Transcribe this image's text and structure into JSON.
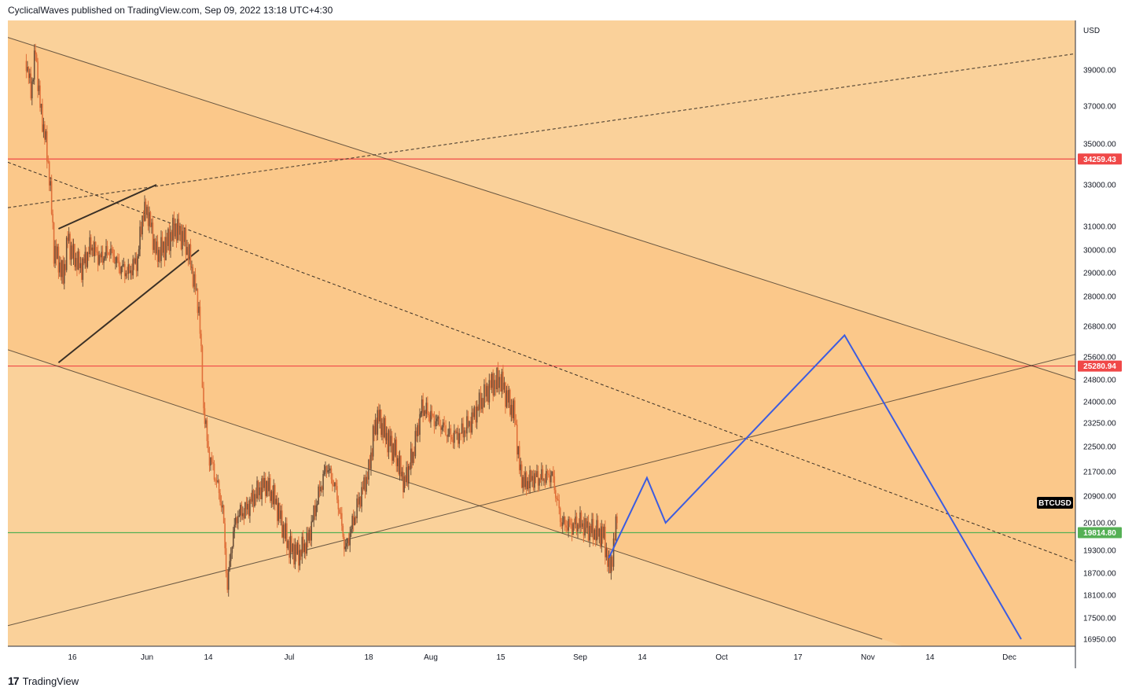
{
  "header": {
    "attribution": "CyclicalWaves published on TradingView.com, Sep 09, 2022 13:18 UTC+4:30"
  },
  "footer": {
    "brand": "TradingView",
    "logo_icon": "tradingview-logo-icon"
  },
  "colors": {
    "chart_bg": "#fad19a",
    "channel_fill": "#fbc88a",
    "candle_up": "#6b4f3a",
    "candle_down": "#e0703a",
    "red_level": "#f04848",
    "green_level": "#55b055",
    "blue_projection": "#3c5ce0",
    "trendline": "#3a3026",
    "label_dark": "#000000"
  },
  "chart_data": {
    "type": "candlestick",
    "symbol_label": "BTCUSD",
    "currency_label": "USD",
    "y_ticks": [
      39000,
      37000,
      35000,
      33000,
      31000,
      30000,
      29000,
      28000,
      26800,
      25600,
      24800,
      24000,
      23250,
      22500,
      21700,
      20900,
      20100,
      19300,
      18700,
      18100,
      17500,
      16950
    ],
    "y_tick_labels": [
      "39000.00",
      "37000.00",
      "35000.00",
      "33000.00",
      "31000.00",
      "30000.00",
      "29000.00",
      "28000.00",
      "26800.00",
      "25600.00",
      "24800.00",
      "24000.00",
      "23250.00",
      "22500.00",
      "21700.00",
      "20900.00",
      "20100.00",
      "19300.00",
      "18700.00",
      "18100.00",
      "17500.00",
      "16950.00"
    ],
    "x_tick_labels": [
      "16",
      "Jun",
      "14",
      "Jul",
      "18",
      "Aug",
      "15",
      "Sep",
      "14",
      "Oct",
      "17",
      "Nov",
      "14",
      "Dec"
    ],
    "x_tick_dates": [
      "2022-05-16",
      "2022-06-01",
      "2022-06-14",
      "2022-07-01",
      "2022-07-18",
      "2022-08-01",
      "2022-08-15",
      "2022-09-01",
      "2022-09-14",
      "2022-10-01",
      "2022-10-17",
      "2022-11-01",
      "2022-11-14",
      "2022-12-01"
    ],
    "levels": [
      {
        "price": 34259.43,
        "label": "34259.43",
        "color": "#f04848"
      },
      {
        "price": 25280.94,
        "label": "25280.94",
        "color": "#f04848"
      },
      {
        "price": 19814.8,
        "label": "19814.80",
        "color": "#55b055"
      }
    ],
    "price_path": [
      [
        "2022-05-06",
        39500
      ],
      [
        "2022-05-07",
        37800
      ],
      [
        "2022-05-08",
        40000
      ],
      [
        "2022-05-09",
        37000
      ],
      [
        "2022-05-10",
        35500
      ],
      [
        "2022-05-11",
        33500
      ],
      [
        "2022-05-12",
        30000
      ],
      [
        "2022-05-13",
        29500
      ],
      [
        "2022-05-14",
        28800
      ],
      [
        "2022-05-15",
        30500
      ],
      [
        "2022-05-16",
        29800
      ],
      [
        "2022-05-18",
        29200
      ],
      [
        "2022-05-20",
        30200
      ],
      [
        "2022-05-22",
        29600
      ],
      [
        "2022-05-24",
        30000
      ],
      [
        "2022-05-26",
        29300
      ],
      [
        "2022-05-28",
        29000
      ],
      [
        "2022-05-30",
        29600
      ],
      [
        "2022-05-31",
        31500
      ],
      [
        "2022-06-01",
        31800
      ],
      [
        "2022-06-03",
        29800
      ],
      [
        "2022-06-05",
        30200
      ],
      [
        "2022-06-07",
        31000
      ],
      [
        "2022-06-09",
        30400
      ],
      [
        "2022-06-10",
        29700
      ],
      [
        "2022-06-11",
        28600
      ],
      [
        "2022-06-12",
        27500
      ],
      [
        "2022-06-13",
        23800
      ],
      [
        "2022-06-14",
        22300
      ],
      [
        "2022-06-15",
        21800
      ],
      [
        "2022-06-16",
        21200
      ],
      [
        "2022-06-17",
        20500
      ],
      [
        "2022-06-18",
        18300
      ],
      [
        "2022-06-19",
        19600
      ],
      [
        "2022-06-20",
        20300
      ],
      [
        "2022-06-22",
        20500
      ],
      [
        "2022-06-24",
        21000
      ],
      [
        "2022-06-26",
        21300
      ],
      [
        "2022-06-28",
        20800
      ],
      [
        "2022-06-30",
        19800
      ],
      [
        "2022-07-01",
        19400
      ],
      [
        "2022-07-03",
        19200
      ],
      [
        "2022-07-05",
        19600
      ],
      [
        "2022-07-07",
        20800
      ],
      [
        "2022-07-09",
        21900
      ],
      [
        "2022-07-11",
        21100
      ],
      [
        "2022-07-13",
        19300
      ],
      [
        "2022-07-14",
        19800
      ],
      [
        "2022-07-16",
        20800
      ],
      [
        "2022-07-18",
        21700
      ],
      [
        "2022-07-19",
        22800
      ],
      [
        "2022-07-20",
        23500
      ],
      [
        "2022-07-22",
        22800
      ],
      [
        "2022-07-24",
        22300
      ],
      [
        "2022-07-26",
        21300
      ],
      [
        "2022-07-28",
        22300
      ],
      [
        "2022-07-30",
        23800
      ],
      [
        "2022-08-01",
        23500
      ],
      [
        "2022-08-03",
        23200
      ],
      [
        "2022-08-05",
        22800
      ],
      [
        "2022-08-07",
        22900
      ],
      [
        "2022-08-09",
        23300
      ],
      [
        "2022-08-11",
        24000
      ],
      [
        "2022-08-13",
        24600
      ],
      [
        "2022-08-15",
        24800
      ],
      [
        "2022-08-16",
        24300
      ],
      [
        "2022-08-18",
        23500
      ],
      [
        "2022-08-19",
        21800
      ],
      [
        "2022-08-20",
        21300
      ],
      [
        "2022-08-22",
        21500
      ],
      [
        "2022-08-24",
        21500
      ],
      [
        "2022-08-26",
        21600
      ],
      [
        "2022-08-27",
        20800
      ],
      [
        "2022-08-28",
        20100
      ],
      [
        "2022-08-30",
        20000
      ],
      [
        "2022-09-01",
        20100
      ],
      [
        "2022-09-03",
        19900
      ],
      [
        "2022-09-05",
        19800
      ],
      [
        "2022-09-06",
        19700
      ],
      [
        "2022-09-07",
        18800
      ],
      [
        "2022-09-08",
        19300
      ],
      [
        "2022-09-09",
        20900
      ]
    ],
    "projection_path": [
      [
        "2022-09-07",
        19100
      ],
      [
        "2022-09-15",
        21500
      ],
      [
        "2022-09-19",
        20100
      ],
      [
        "2022-10-27",
        26450
      ],
      [
        "2022-12-06",
        16950
      ]
    ],
    "trendlines": [
      {
        "p1": [
          "2022-05-02",
          40800
        ],
        "p2": [
          "2022-12-29",
          24800
        ],
        "style": "solid"
      },
      {
        "p1": [
          "2022-05-02",
          25880
        ],
        "p2": [
          "2022-11-04",
          16950
        ],
        "style": "solid"
      },
      {
        "p1": [
          "2022-05-02",
          17300
        ],
        "p2": [
          "2022-12-29",
          25700
        ],
        "style": "solid"
      },
      {
        "p1": [
          "2022-05-02",
          31900
        ],
        "p2": [
          "2022-12-29",
          39900
        ],
        "style": "dashed"
      },
      {
        "p1": [
          "2022-05-02",
          34100
        ],
        "p2": [
          "2022-12-29",
          19000
        ],
        "style": "dashed"
      },
      {
        "p1": [
          "2022-05-13",
          30900
        ],
        "p2": [
          "2022-06-03",
          33000
        ],
        "style": "solid-thick"
      },
      {
        "p1": [
          "2022-05-13",
          25400
        ],
        "p2": [
          "2022-06-12",
          30000
        ],
        "style": "solid-thick"
      }
    ]
  }
}
